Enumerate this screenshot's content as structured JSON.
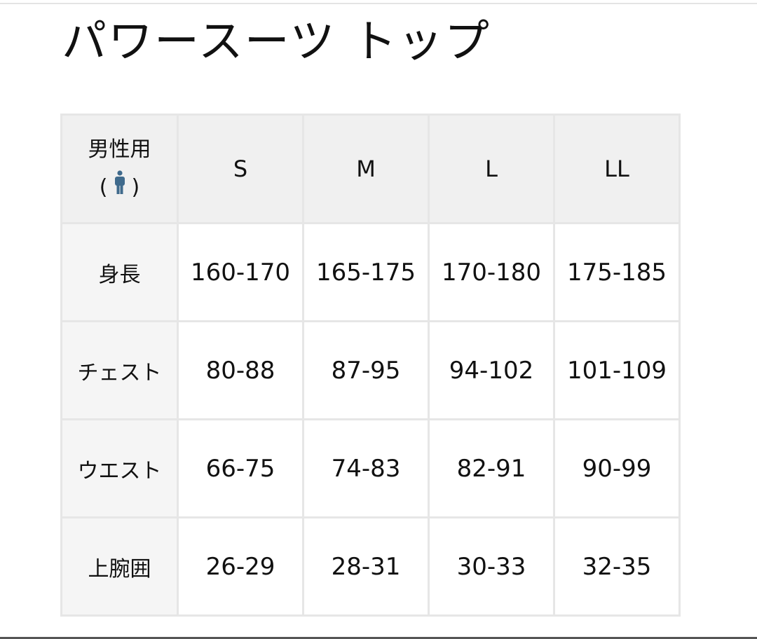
{
  "title": "パワースーツ トップ",
  "table": {
    "corner_label": "男性用",
    "corner_icon": "man-icon",
    "icon_color": "#3f6a8c",
    "sizes": [
      "S",
      "M",
      "L",
      "LL"
    ],
    "rows": [
      {
        "label": "身長",
        "values": [
          "160-170",
          "165-175",
          "170-180",
          "175-185"
        ]
      },
      {
        "label": "チェスト",
        "values": [
          "80-88",
          "87-95",
          "94-102",
          "101-109"
        ]
      },
      {
        "label": "ウエスト",
        "values": [
          "66-75",
          "74-83",
          "82-91",
          "90-99"
        ]
      },
      {
        "label": "上腕囲",
        "values": [
          "26-29",
          "28-31",
          "30-33",
          "32-35"
        ]
      }
    ]
  }
}
